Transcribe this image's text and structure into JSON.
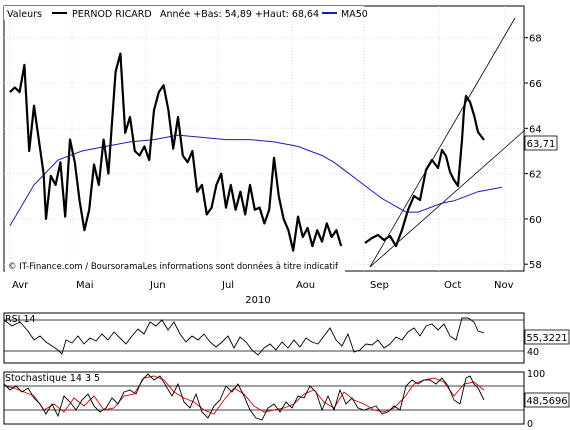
{
  "header": {
    "label_prefix": "Valeurs",
    "security_name": "PERNOD RICARD",
    "year_info": "Année +Bas: 54,89 +Haut: 68,64",
    "ma_label": "MA50"
  },
  "watermark": "© IT-Finance.com / BoursoramaLes informations sont données à titre indicatif",
  "colors": {
    "price": "#000000",
    "ma50": "#1b1bbf",
    "stoch_signal": "#d40000",
    "frame": "#000000"
  },
  "chart_data": [
    {
      "type": "line",
      "title": "PERNOD RICARD",
      "x_axis_months": [
        "Avr",
        "Mai",
        "Jun",
        "Jul",
        "Aou",
        "Sep",
        "Oct",
        "Nov"
      ],
      "x_axis_year": "2010",
      "ylim": [
        57.7,
        69.4
      ],
      "y_ticks": [
        58,
        60,
        62,
        64,
        66,
        68
      ],
      "last_value_label": "63,71",
      "grid": true,
      "series": [
        {
          "name": "PERNOD RICARD",
          "x": [
            0,
            2,
            4,
            6,
            8,
            10,
            12,
            14,
            15,
            17,
            19,
            21,
            23,
            25,
            27,
            29,
            31,
            33,
            35,
            37,
            39,
            41,
            43,
            44,
            46,
            48,
            50,
            52,
            54,
            56,
            58,
            60,
            62,
            64,
            66,
            68,
            70,
            72,
            74,
            76,
            78,
            80,
            82,
            84,
            86,
            88,
            90,
            92,
            94,
            96,
            98,
            100,
            102,
            104,
            106,
            108,
            110,
            112,
            114,
            116,
            118,
            120,
            122,
            124,
            126,
            128,
            130,
            132,
            134,
            136,
            138
          ],
          "values": [
            65.6,
            65.8,
            65.6,
            66.8,
            63.0,
            65.0,
            63.5,
            62.0,
            60.0,
            61.9,
            61.5,
            62.5,
            60.1,
            63.5,
            62.5,
            60.8,
            59.5,
            60.4,
            62.4,
            61.5,
            63.5,
            62.0,
            65.0,
            66.5,
            67.3,
            63.8,
            64.5,
            63.0,
            62.8,
            63.2,
            62.6,
            64.8,
            65.6,
            65.9,
            64.8,
            63.1,
            64.5,
            62.8,
            62.5,
            63.0,
            61.2,
            61.5,
            60.2,
            60.5,
            61.5,
            62.0,
            60.5,
            61.5,
            60.4,
            61.2,
            60.2,
            61.5,
            60.4,
            60.5,
            59.8,
            60.4,
            62.7,
            61.0,
            60.0,
            59.5,
            58.6,
            60.1,
            59.2,
            59.6,
            58.8,
            59.5,
            59.0,
            59.8,
            59.2,
            59.5,
            58.8
          ]
        },
        {
          "name": "MA50",
          "x": [
            0,
            10,
            20,
            30,
            40,
            50,
            60,
            70,
            80,
            90,
            100,
            110,
            120,
            125,
            130,
            135,
            140,
            145,
            150,
            155,
            160,
            165,
            170,
            175,
            180,
            185,
            190,
            195,
            200,
            205
          ],
          "values": [
            59.7,
            61.5,
            62.6,
            63.0,
            63.2,
            63.4,
            63.5,
            63.7,
            63.6,
            63.5,
            63.5,
            63.4,
            63.2,
            63.0,
            62.8,
            62.5,
            62.1,
            61.7,
            61.3,
            60.9,
            60.6,
            60.3,
            60.3,
            60.5,
            60.7,
            60.8,
            61.0,
            61.2,
            61.3,
            61.4
          ]
        }
      ]
    },
    {
      "type": "line",
      "title": "RSI 14",
      "ylim": [
        33,
        70
      ],
      "y_ticks": [
        40
      ],
      "last_value_label": "55,3221"
    },
    {
      "type": "line",
      "title": "Stochastique 14 3 5",
      "ylim": [
        0,
        100
      ],
      "y_ticks": [
        0,
        100
      ],
      "last_value_label": "48,5696"
    }
  ]
}
